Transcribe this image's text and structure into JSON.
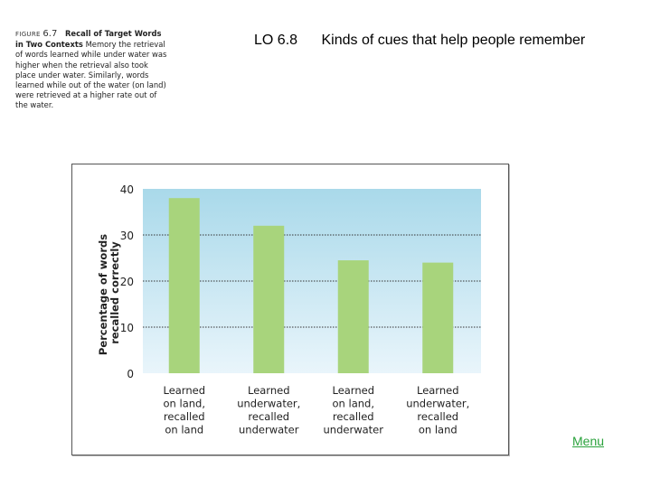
{
  "slide": {
    "lo_code": "LO 6.8",
    "title": "Kinds of cues that help people remember",
    "menu_label": "Menu"
  },
  "caption": {
    "label": "FIGURE",
    "number": "6.7",
    "title": "Recall of Target Words in Two Contexts",
    "body": "Memory the retrieval of words learned while under water was higher when the retrieval also took place under water. Similarly, words learned while out of the water (on land) were retrieved at a higher rate out of the water."
  },
  "colors": {
    "bar": "#a8d47c",
    "plot_top": "#a9d9ea",
    "plot_bottom": "#e9f5fb",
    "grid": "#333333",
    "menu_link": "#2aa23c"
  },
  "chart_data": {
    "type": "bar",
    "categories": [
      [
        "Learned",
        "on land,",
        "recalled",
        "on land"
      ],
      [
        "Learned",
        "underwater,",
        "recalled",
        "underwater"
      ],
      [
        "Learned",
        "on land,",
        "recalled",
        "underwater"
      ],
      [
        "Learned",
        "underwater,",
        "recalled",
        "on land"
      ]
    ],
    "values": [
      38,
      32,
      24.5,
      24
    ],
    "title": "",
    "xlabel": "",
    "ylabel": [
      "Percentage of words",
      "recalled correctly"
    ],
    "ylim": [
      0,
      40
    ],
    "yticks": [
      0,
      10,
      20,
      30,
      40
    ],
    "grid": true,
    "legend": false
  }
}
